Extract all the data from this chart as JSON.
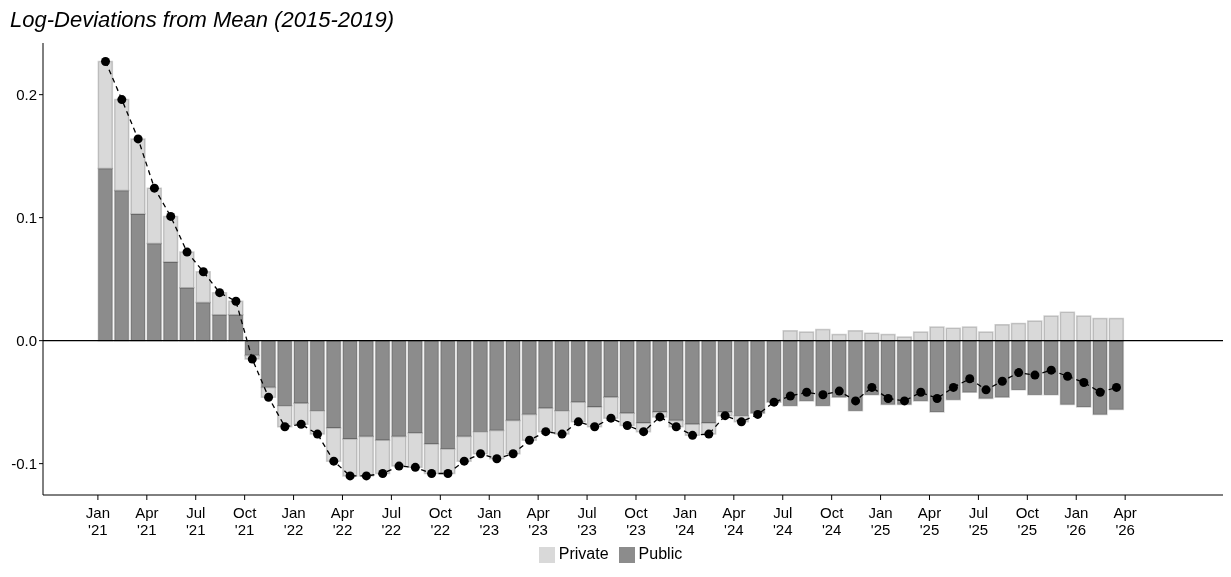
{
  "chart_data": {
    "type": "bar",
    "title": "Log-Deviations from Mean (2015-2019)",
    "x": [
      "2021-01-15",
      "2021-02-15",
      "2021-03-15",
      "2021-04-15",
      "2021-05-15",
      "2021-06-15",
      "2021-07-15",
      "2021-08-15",
      "2021-09-15",
      "2021-10-15",
      "2021-11-15",
      "2021-12-15",
      "2022-01-15",
      "2022-02-15",
      "2022-03-15",
      "2022-04-15",
      "2022-05-15",
      "2022-06-15",
      "2022-07-15",
      "2022-08-15",
      "2022-09-15",
      "2022-10-15",
      "2022-11-15",
      "2022-12-15",
      "2023-01-15",
      "2023-02-15",
      "2023-03-15",
      "2023-04-15",
      "2023-05-15",
      "2023-06-15",
      "2023-07-15",
      "2023-08-15",
      "2023-09-15",
      "2023-10-15",
      "2023-11-15",
      "2023-12-15",
      "2024-01-15",
      "2024-02-15",
      "2024-03-15",
      "2024-04-15",
      "2024-05-15",
      "2024-06-15",
      "2024-07-15",
      "2024-08-15",
      "2024-09-15",
      "2024-10-15",
      "2024-11-15",
      "2024-12-15",
      "2025-01-15",
      "2025-02-15",
      "2025-03-15",
      "2025-04-15",
      "2025-05-15",
      "2025-06-15",
      "2025-07-15",
      "2025-08-15",
      "2025-09-15",
      "2025-10-15",
      "2025-11-15",
      "2025-12-15",
      "2026-01-15",
      "2026-02-15",
      "2026-03-15"
    ],
    "stacked": true,
    "series": [
      {
        "name": "Public",
        "color": "#8c8c8c",
        "values": [
          0.14,
          0.122,
          0.103,
          0.079,
          0.064,
          0.043,
          0.031,
          0.021,
          0.021,
          -0.012,
          -0.038,
          -0.053,
          -0.051,
          -0.057,
          -0.071,
          -0.08,
          -0.078,
          -0.081,
          -0.078,
          -0.075,
          -0.084,
          -0.088,
          -0.078,
          -0.074,
          -0.073,
          -0.065,
          -0.06,
          -0.055,
          -0.057,
          -0.05,
          -0.054,
          -0.046,
          -0.059,
          -0.067,
          -0.058,
          -0.065,
          -0.068,
          -0.067,
          -0.058,
          -0.061,
          -0.059,
          -0.05,
          -0.053,
          -0.049,
          -0.053,
          -0.046,
          -0.057,
          -0.044,
          -0.052,
          -0.052,
          -0.049,
          -0.058,
          -0.048,
          -0.042,
          -0.047,
          -0.046,
          -0.04,
          -0.044,
          -0.044,
          -0.052,
          -0.054,
          -0.06,
          -0.056
        ]
      },
      {
        "name": "Private",
        "color": "#d9d9d9",
        "values": [
          0.087,
          0.074,
          0.061,
          0.045,
          0.037,
          0.029,
          0.025,
          0.018,
          0.011,
          -0.003,
          -0.008,
          -0.017,
          -0.017,
          -0.019,
          -0.027,
          -0.03,
          -0.032,
          -0.027,
          -0.024,
          -0.028,
          -0.024,
          -0.02,
          -0.02,
          -0.018,
          -0.023,
          -0.027,
          -0.021,
          -0.019,
          -0.019,
          -0.016,
          -0.016,
          -0.017,
          -0.01,
          -0.007,
          -0.004,
          -0.005,
          -0.009,
          -0.009,
          -0.003,
          -0.005,
          null,
          0,
          0.008,
          0.007,
          0.009,
          0.005,
          0.008,
          0.006,
          0.005,
          0.003,
          0.007,
          0.011,
          0.01,
          0.011,
          0.007,
          0.013,
          0.014,
          0.016,
          0.02,
          0.023,
          0.02,
          0.018,
          0.018
        ]
      },
      {
        "type": "line",
        "color": "#000000",
        "values": [
          0.227,
          0.196,
          0.164,
          0.124,
          0.101,
          0.072,
          0.056,
          0.039,
          0.032,
          -0.015,
          -0.046,
          -0.07,
          -0.068,
          -0.076,
          -0.098,
          -0.11,
          -0.11,
          -0.108,
          -0.102,
          -0.103,
          -0.108,
          -0.108,
          -0.098,
          -0.092,
          -0.096,
          -0.092,
          -0.081,
          -0.074,
          -0.076,
          -0.066,
          -0.07,
          -0.063,
          -0.069,
          -0.074,
          -0.062,
          -0.07,
          -0.077,
          -0.076,
          -0.061,
          -0.066,
          -0.06,
          -0.05,
          -0.045,
          -0.042,
          -0.044,
          -0.041,
          -0.049,
          -0.038,
          -0.047,
          -0.049,
          -0.042,
          -0.047,
          -0.038,
          -0.031,
          -0.04,
          -0.033,
          -0.026,
          -0.028,
          -0.024,
          -0.029,
          -0.034,
          -0.042,
          -0.038
        ]
      }
    ],
    "line_style": "dashed",
    "marker": "circle",
    "ylim": [
      -0.1255,
      0.242
    ],
    "yticks": [
      -0.1,
      {
        "value": 0,
        "label": "0.0"
      },
      0.1,
      0.2
    ],
    "xlim": [
      "2020-09-20",
      "2026-10-01"
    ],
    "xticks": [
      {
        "value": "2021-01-01",
        "label": "Jan\n'21"
      },
      {
        "value": "2021-04-01",
        "label": "Apr\n'21"
      },
      {
        "value": "2021-07-01",
        "label": "Jul\n'21"
      },
      {
        "value": "2021-10-01",
        "label": "Oct\n'21"
      },
      {
        "value": "2022-01-01",
        "label": "Jan\n'22"
      },
      {
        "value": "2022-04-01",
        "label": "Apr\n'22"
      },
      {
        "value": "2022-07-01",
        "label": "Jul\n'22"
      },
      {
        "value": "2022-10-01",
        "label": "Oct\n'22"
      },
      {
        "value": "2023-01-01",
        "label": "Jan\n'23"
      },
      {
        "value": "2023-04-01",
        "label": "Apr\n'23"
      },
      {
        "value": "2023-07-01",
        "label": "Jul\n'23"
      },
      {
        "value": "2023-10-01",
        "label": "Oct\n'23"
      },
      {
        "value": "2024-01-01",
        "label": "Jan\n'24"
      },
      {
        "value": "2024-04-01",
        "label": "Apr\n'24"
      },
      {
        "value": "2024-07-01",
        "label": "Jul\n'24"
      },
      {
        "value": "2024-10-01",
        "label": "Oct\n'24"
      },
      {
        "value": "2025-01-01",
        "label": "Jan\n'25"
      },
      {
        "value": "2025-04-01",
        "label": "Apr\n'25"
      },
      {
        "value": "2025-07-01",
        "label": "Jul\n'25"
      },
      {
        "value": "2025-10-01",
        "label": "Oct\n'25"
      },
      {
        "value": "2026-01-01",
        "label": "Jan\n'26"
      },
      {
        "value": "2026-04-01",
        "label": "Apr\n'26"
      }
    ],
    "ref_lines": [
      {
        "axis": "y",
        "value": 0,
        "color": "#000000"
      }
    ],
    "grid": false,
    "legend": "bottom"
  }
}
